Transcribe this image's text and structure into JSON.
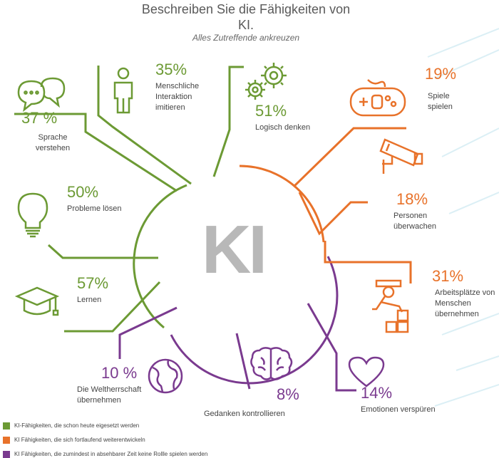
{
  "title_line1": "Beschreiben Sie die Fähigkeiten von",
  "title_line2": "KI.",
  "subtitle": "Alles Zutreffende ankreuzen",
  "center_label": "KI",
  "colors": {
    "green": "#6c9a34",
    "orange": "#e8722a",
    "purple": "#7a3a8f",
    "center": "#b8b8b8"
  },
  "chart_data": {
    "type": "infographic-radial",
    "unit": "%",
    "items": [
      {
        "value": 37,
        "display": "37 %",
        "label": [
          "Sprache",
          "verstehen"
        ],
        "group": "green",
        "icon": "speech-bubbles-icon"
      },
      {
        "value": 35,
        "display": "35%",
        "label": [
          "Menschliche",
          "Interaktion",
          "imitieren"
        ],
        "group": "green",
        "icon": "person-icon"
      },
      {
        "value": 51,
        "display": "51%",
        "label": [
          "Logisch denken"
        ],
        "group": "green",
        "icon": "gears-icon"
      },
      {
        "value": 50,
        "display": "50%",
        "label": [
          "Probleme lösen"
        ],
        "group": "green",
        "icon": "light-bulb-icon"
      },
      {
        "value": 57,
        "display": "57%",
        "label": [
          "Lernen"
        ],
        "group": "green",
        "icon": "graduation-cap-icon"
      },
      {
        "value": 19,
        "display": "19%",
        "label": [
          "Spiele",
          "spielen"
        ],
        "group": "orange",
        "icon": "game-controller-icon"
      },
      {
        "value": 18,
        "display": "18%",
        "label": [
          "Personen",
          "überwachen"
        ],
        "group": "orange",
        "icon": "security-camera-icon"
      },
      {
        "value": 31,
        "display": "31%",
        "label": [
          "Arbeitsplätze von",
          "Menschen",
          "übernehmen"
        ],
        "group": "orange",
        "icon": "robot-arm-icon"
      },
      {
        "value": 10,
        "display": "10 %",
        "label": [
          "Die Weltherrschaft",
          "übernehmen"
        ],
        "group": "purple",
        "icon": "globe-icon"
      },
      {
        "value": 8,
        "display": "8%",
        "label": [
          "Gedanken kontrollieren"
        ],
        "group": "purple",
        "icon": "brain-icon"
      },
      {
        "value": 14,
        "display": "14%",
        "label": [
          "Emotionen verspüren"
        ],
        "group": "purple",
        "icon": "heart-icon"
      }
    ],
    "legend": [
      {
        "group": "green",
        "text": "KI-Fähigkeiten, die schon heute eigesetzt werden"
      },
      {
        "group": "orange",
        "text": "KI Fähigkeiten, die sich fortlaufend weiterentwickeln"
      },
      {
        "group": "purple",
        "text": "KI Fähigkeiten, die zumindest in absehbarer Zeit keine Rollle  spielen werden"
      }
    ]
  }
}
